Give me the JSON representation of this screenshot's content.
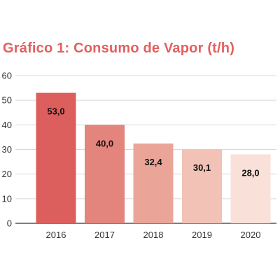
{
  "colors": {
    "title": "#e2605f",
    "axis": "#333333",
    "grid": "#d8d8d8",
    "bar_fills": [
      "#dc5e5d",
      "#e3847d",
      "#eaa598",
      "#f1c2b5",
      "#f9e0d8"
    ]
  },
  "chart_data": {
    "type": "bar",
    "title": "Gráfico 1: Consumo de Vapor (t/h)",
    "xlabel": "",
    "ylabel": "",
    "categories": [
      "2016",
      "2017",
      "2018",
      "2019",
      "2020"
    ],
    "values": [
      53.0,
      40.0,
      32.4,
      30.1,
      28.0
    ],
    "value_labels": [
      "53,0",
      "40,0",
      "32,4",
      "30,1",
      "28,0"
    ],
    "ylim": [
      0,
      60
    ],
    "yticks": [
      0,
      10,
      20,
      30,
      40,
      50,
      60
    ],
    "grid": true,
    "legend": "none"
  }
}
